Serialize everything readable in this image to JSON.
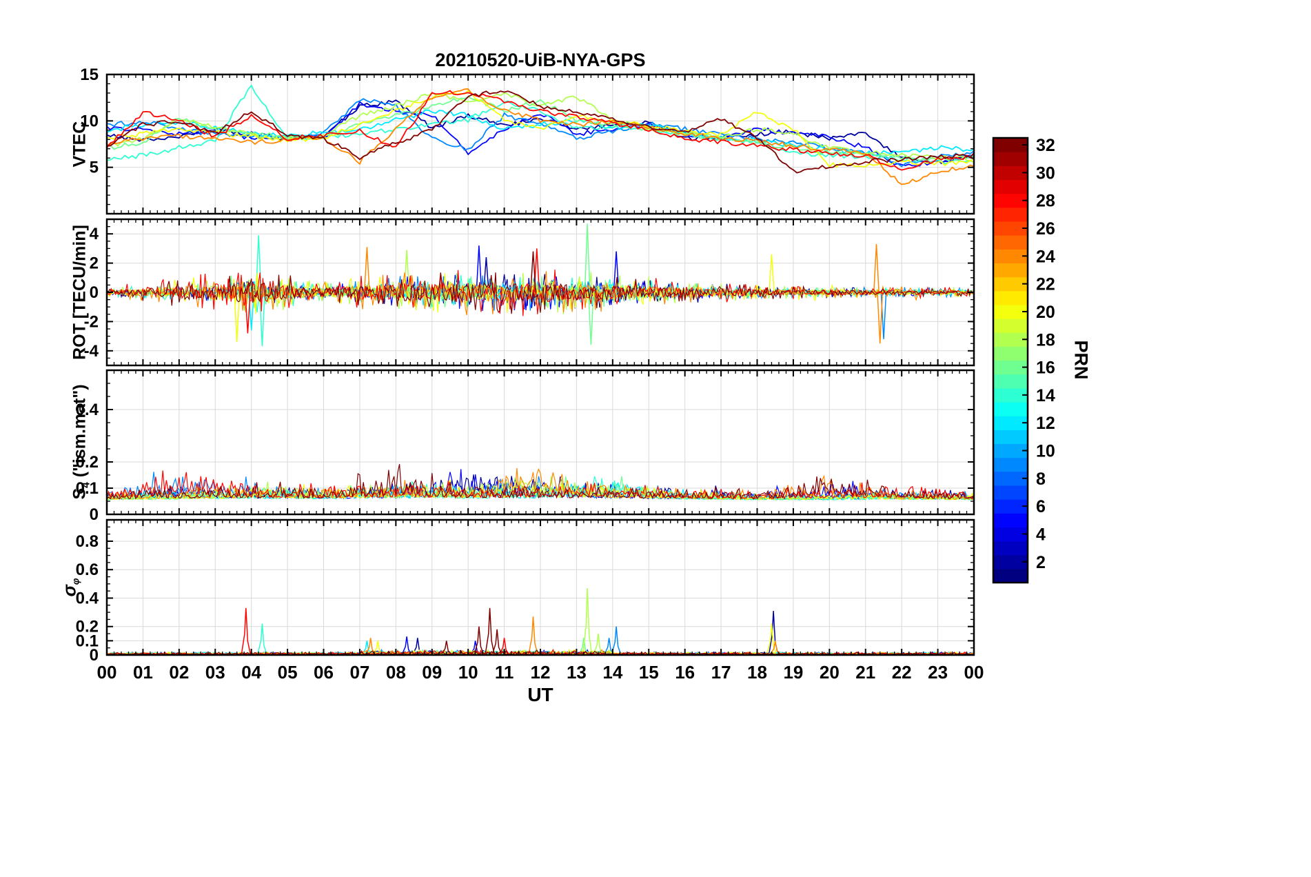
{
  "title": "20210520-UiB-NYA-GPS",
  "xlabel": "UT",
  "x_ticks": [
    "00",
    "01",
    "02",
    "03",
    "04",
    "05",
    "06",
    "07",
    "08",
    "09",
    "10",
    "11",
    "12",
    "13",
    "14",
    "15",
    "16",
    "17",
    "18",
    "19",
    "20",
    "21",
    "22",
    "23",
    "00"
  ],
  "colorbar": {
    "label": "PRN",
    "colormap": "jet",
    "range": [
      1,
      32
    ],
    "ticks": [
      2,
      4,
      6,
      8,
      10,
      12,
      14,
      16,
      18,
      20,
      22,
      24,
      26,
      28,
      30,
      32
    ]
  },
  "chart_data": [
    {
      "name": "vtec",
      "type": "line",
      "ylabel": "VTEC",
      "ylim": [
        0,
        15
      ],
      "yticks": [
        5,
        10,
        15
      ],
      "ytick_labels": [
        "5",
        "10",
        "15"
      ],
      "y_minor_step": 1,
      "render": "smooth_lines",
      "x_hours": [
        0,
        1,
        2,
        3,
        4,
        5,
        6,
        7,
        8,
        9,
        10,
        11,
        12,
        13,
        14,
        15,
        16,
        17,
        18,
        19,
        20,
        21,
        22,
        23,
        24
      ],
      "series": [
        {
          "prn": 2,
          "values": [
            8.4,
            8.0,
            8.3,
            9.1,
            8.6,
            8.1,
            8.4,
            11.6,
            12.1,
            9.2,
            10.6,
            9.6,
            10.1,
            9.2,
            9.6,
            9.8,
            8.1,
            8.3,
            8.6,
            8.8,
            8.1,
            8.6,
            6.1,
            5.6,
            6.1
          ]
        },
        {
          "prn": 5,
          "values": [
            9.2,
            9.0,
            8.6,
            8.9,
            8.1,
            8.2,
            8.1,
            11.9,
            11.1,
            10.6,
            6.6,
            9.1,
            10.9,
            8.6,
            9.1,
            9.6,
            8.6,
            8.1,
            9.1,
            8.7,
            8.3,
            7.1,
            5.1,
            5.6,
            6.2
          ]
        },
        {
          "prn": 9,
          "values": [
            9.6,
            9.9,
            9.1,
            8.6,
            8.4,
            8.1,
            8.6,
            12.3,
            11.6,
            8.1,
            6.9,
            10.6,
            9.6,
            8.1,
            8.9,
            9.7,
            9.1,
            8.5,
            8.1,
            7.6,
            7.1,
            6.6,
            5.3,
            6.1,
            6.6
          ]
        },
        {
          "prn": 12,
          "values": [
            8.9,
            9.6,
            9.9,
            9.3,
            8.6,
            8.5,
            8.7,
            9.1,
            10.1,
            11.1,
            10.6,
            9.1,
            9.6,
            10.1,
            9.3,
            9.5,
            8.7,
            8.1,
            7.9,
            7.3,
            6.9,
            6.5,
            6.7,
            7.1,
            6.9
          ]
        },
        {
          "prn": 14,
          "values": [
            5.9,
            6.3,
            7.1,
            7.9,
            13.8,
            8.1,
            8.3,
            8.6,
            9.1,
            9.6,
            10.1,
            12.1,
            11.1,
            9.1,
            9.4,
            9.1,
            8.6,
            8.1,
            7.6,
            6.6,
            6.3,
            6.1,
            5.9,
            5.6,
            5.7
          ]
        },
        {
          "prn": 16,
          "values": [
            7.1,
            7.6,
            10.3,
            9.1,
            8.6,
            8.3,
            8.1,
            9.6,
            10.6,
            11.6,
            12.6,
            11.1,
            12.1,
            10.1,
            9.6,
            9.1,
            8.6,
            8.1,
            7.6,
            7.1,
            6.6,
            6.4,
            6.1,
            5.9,
            6.0
          ]
        },
        {
          "prn": 18,
          "values": [
            7.3,
            8.1,
            10.1,
            9.3,
            8.5,
            8.1,
            8.4,
            10.6,
            11.6,
            12.9,
            12.1,
            13.1,
            11.6,
            12.6,
            10.1,
            9.3,
            8.7,
            8.3,
            9.1,
            8.6,
            7.1,
            6.6,
            6.3,
            6.1,
            5.9
          ]
        },
        {
          "prn": 20,
          "values": [
            8.1,
            8.6,
            9.1,
            8.7,
            8.3,
            7.9,
            8.1,
            9.6,
            11.1,
            12.6,
            13.1,
            10.1,
            9.1,
            10.6,
            9.9,
            9.5,
            8.9,
            8.5,
            10.9,
            9.1,
            5.3,
            5.1,
            5.6,
            5.4,
            5.6
          ]
        },
        {
          "prn": 24,
          "values": [
            7.6,
            8.1,
            8.4,
            8.1,
            7.7,
            7.9,
            8.2,
            5.6,
            9.1,
            12.6,
            13.3,
            11.1,
            10.1,
            9.6,
            9.9,
            9.3,
            8.6,
            8.1,
            7.9,
            7.3,
            6.9,
            6.6,
            3.1,
            4.6,
            5.1
          ]
        },
        {
          "prn": 28,
          "values": [
            7.1,
            10.9,
            10.1,
            8.3,
            10.6,
            8.1,
            8.5,
            8.9,
            7.1,
            12.9,
            13.1,
            12.1,
            11.1,
            10.4,
            9.7,
            9.1,
            8.1,
            7.7,
            7.3,
            6.9,
            6.5,
            6.3,
            4.6,
            5.9,
            6.1
          ]
        },
        {
          "prn": 32,
          "values": [
            7.3,
            9.6,
            9.9,
            8.6,
            11.1,
            8.4,
            8.1,
            6.1,
            7.6,
            9.1,
            12.6,
            13.3,
            11.6,
            10.9,
            10.1,
            9.4,
            8.9,
            10.3,
            8.1,
            4.6,
            5.1,
            5.6,
            5.9,
            6.1,
            6.3
          ]
        }
      ]
    },
    {
      "name": "rot",
      "type": "line",
      "ylabel": "ROT [TECU/min]",
      "ylim": [
        -5,
        5
      ],
      "yticks": [
        -4,
        -2,
        0,
        2,
        4
      ],
      "ytick_labels": [
        "-4",
        "-2",
        "0",
        "2",
        "4"
      ],
      "y_minor_step": 0.5,
      "render": "noise_envelope",
      "envelope_hours_step": 2,
      "series": [
        {
          "prn": 2,
          "amplitude_envelope": [
            0.3,
            0.3,
            0.8,
            0.5,
            1.0,
            1.2,
            1.3,
            1.0,
            0.8,
            0.5,
            0.4,
            0.3,
            0.3
          ],
          "spikes": [
            [
              10.5,
              2.4
            ]
          ]
        },
        {
          "prn": 5,
          "amplitude_envelope": [
            0.3,
            0.4,
            0.9,
            0.5,
            1.1,
            1.4,
            1.2,
            1.1,
            0.7,
            0.4,
            0.3,
            0.3,
            0.3
          ],
          "spikes": [
            [
              10.3,
              3.2
            ],
            [
              14.1,
              2.8
            ]
          ]
        },
        {
          "prn": 9,
          "amplitude_envelope": [
            0.3,
            0.4,
            0.8,
            0.6,
            1.2,
            1.3,
            1.4,
            0.9,
            0.6,
            0.4,
            0.3,
            0.4,
            0.3
          ],
          "spikes": [
            [
              21.5,
              -3.2
            ]
          ]
        },
        {
          "prn": 12,
          "amplitude_envelope": [
            0.3,
            0.5,
            1.0,
            0.5,
            0.9,
            1.2,
            1.1,
            0.8,
            0.6,
            0.4,
            0.3,
            0.3,
            0.3
          ],
          "spikes": [
            [
              4.0,
              -2.6
            ]
          ]
        },
        {
          "prn": 14,
          "amplitude_envelope": [
            0.4,
            0.5,
            1.6,
            0.6,
            1.0,
            1.3,
            1.2,
            1.0,
            0.7,
            0.4,
            0.3,
            0.3,
            0.3
          ],
          "spikes": [
            [
              4.2,
              3.9
            ],
            [
              4.3,
              -3.7
            ]
          ]
        },
        {
          "prn": 16,
          "amplitude_envelope": [
            0.3,
            0.6,
            1.4,
            0.6,
            1.1,
            1.5,
            1.3,
            1.2,
            0.6,
            0.4,
            0.3,
            0.3,
            0.3
          ],
          "spikes": [
            [
              13.3,
              4.7
            ],
            [
              13.4,
              -3.6
            ]
          ]
        },
        {
          "prn": 18,
          "amplitude_envelope": [
            0.3,
            0.8,
            1.7,
            0.7,
            1.2,
            1.4,
            1.5,
            1.6,
            0.8,
            0.5,
            0.4,
            0.3,
            0.3
          ],
          "spikes": [
            [
              8.3,
              2.9
            ]
          ]
        },
        {
          "prn": 20,
          "amplitude_envelope": [
            0.4,
            1.0,
            1.8,
            0.8,
            1.3,
            1.5,
            1.4,
            1.2,
            0.9,
            0.5,
            0.6,
            0.4,
            0.3
          ],
          "spikes": [
            [
              3.6,
              -3.4
            ],
            [
              18.4,
              2.6
            ]
          ]
        },
        {
          "prn": 24,
          "amplitude_envelope": [
            0.4,
            0.9,
            1.5,
            0.7,
            1.6,
            1.6,
            1.5,
            1.3,
            0.8,
            0.5,
            0.4,
            0.6,
            0.3
          ],
          "spikes": [
            [
              7.2,
              3.1
            ],
            [
              21.3,
              3.3
            ],
            [
              21.4,
              -3.5
            ]
          ]
        },
        {
          "prn": 28,
          "amplitude_envelope": [
            0.4,
            1.1,
            1.9,
            0.8,
            1.5,
            1.7,
            1.6,
            1.4,
            0.9,
            0.5,
            0.4,
            0.4,
            0.3
          ],
          "spikes": [
            [
              3.9,
              -2.8
            ],
            [
              11.9,
              3.0
            ]
          ]
        },
        {
          "prn": 32,
          "amplitude_envelope": [
            0.4,
            1.0,
            1.8,
            0.7,
            1.4,
            1.8,
            1.7,
            1.5,
            0.8,
            0.5,
            0.4,
            0.3,
            0.3
          ],
          "spikes": [
            [
              11.8,
              2.8
            ]
          ]
        }
      ]
    },
    {
      "name": "s4",
      "type": "line",
      "ylabel": "S_4 (\"ism.mat\")",
      "ylabel_parts": {
        "main": "S",
        "sub": "4",
        "rest": " (\"ism.mat\")"
      },
      "ylim": [
        0,
        0.55
      ],
      "yticks": [
        0,
        0.1,
        0.2,
        0.4
      ],
      "ytick_labels": [
        "0",
        "0.1",
        "0.2",
        "0.4"
      ],
      "y_minor_step": 0.05,
      "baseline": 0.05,
      "render": "burst_envelope",
      "envelope_hours_step": 2,
      "series": [
        {
          "prn": 2,
          "max_envelope": [
            0.1,
            0.12,
            0.13,
            0.12,
            0.14,
            0.2,
            0.16,
            0.12,
            0.12,
            0.1,
            0.09,
            0.12,
            0.1
          ]
        },
        {
          "prn": 5,
          "max_envelope": [
            0.09,
            0.11,
            0.12,
            0.11,
            0.12,
            0.18,
            0.14,
            0.12,
            0.1,
            0.09,
            0.16,
            0.1,
            0.09
          ]
        },
        {
          "prn": 9,
          "max_envelope": [
            0.1,
            0.2,
            0.14,
            0.12,
            0.13,
            0.14,
            0.16,
            0.11,
            0.1,
            0.09,
            0.09,
            0.1,
            0.09
          ]
        },
        {
          "prn": 12,
          "max_envelope": [
            0.09,
            0.13,
            0.12,
            0.1,
            0.12,
            0.12,
            0.12,
            0.16,
            0.1,
            0.08,
            0.08,
            0.09,
            0.08
          ]
        },
        {
          "prn": 14,
          "max_envelope": [
            0.08,
            0.1,
            0.11,
            0.1,
            0.14,
            0.11,
            0.12,
            0.18,
            0.09,
            0.08,
            0.08,
            0.1,
            0.08
          ]
        },
        {
          "prn": 16,
          "max_envelope": [
            0.08,
            0.09,
            0.12,
            0.11,
            0.12,
            0.12,
            0.14,
            0.16,
            0.09,
            0.08,
            0.08,
            0.09,
            0.08
          ]
        },
        {
          "prn": 18,
          "max_envelope": [
            0.09,
            0.1,
            0.13,
            0.12,
            0.14,
            0.13,
            0.22,
            0.12,
            0.1,
            0.08,
            0.09,
            0.09,
            0.08
          ]
        },
        {
          "prn": 20,
          "max_envelope": [
            0.09,
            0.1,
            0.12,
            0.12,
            0.13,
            0.14,
            0.14,
            0.13,
            0.11,
            0.09,
            0.1,
            0.09,
            0.09
          ]
        },
        {
          "prn": 24,
          "max_envelope": [
            0.1,
            0.12,
            0.13,
            0.12,
            0.14,
            0.13,
            0.25,
            0.12,
            0.11,
            0.1,
            0.2,
            0.1,
            0.09
          ]
        },
        {
          "prn": 28,
          "max_envelope": [
            0.11,
            0.22,
            0.14,
            0.13,
            0.14,
            0.13,
            0.14,
            0.16,
            0.12,
            0.1,
            0.12,
            0.14,
            0.1
          ]
        },
        {
          "prn": 32,
          "max_envelope": [
            0.1,
            0.12,
            0.13,
            0.12,
            0.2,
            0.13,
            0.13,
            0.12,
            0.12,
            0.1,
            0.19,
            0.12,
            0.1
          ]
        }
      ]
    },
    {
      "name": "sigma-phi",
      "type": "line",
      "ylabel": "σ_φ",
      "ylabel_parts": {
        "main": "σ",
        "sub": "φ"
      },
      "ylim": [
        0,
        0.95
      ],
      "yticks": [
        0,
        0.1,
        0.2,
        0.4,
        0.6,
        0.8
      ],
      "ytick_labels": [
        "0",
        "0.1",
        "0.2",
        "0.4",
        "0.6",
        "0.8"
      ],
      "y_minor_step": 0.05,
      "baseline": 0.02,
      "active_window_hours": [
        7,
        14
      ],
      "render": "spike_baseline",
      "series": [
        {
          "prn": 2,
          "spikes": [
            [
              18.45,
              0.31
            ],
            [
              8.6,
              0.12
            ]
          ]
        },
        {
          "prn": 5,
          "spikes": [
            [
              8.3,
              0.13
            ],
            [
              10.2,
              0.1
            ]
          ]
        },
        {
          "prn": 9,
          "spikes": [
            [
              14.1,
              0.2
            ],
            [
              13.9,
              0.12
            ]
          ]
        },
        {
          "prn": 12,
          "spikes": [
            [
              7.2,
              0.1
            ]
          ]
        },
        {
          "prn": 14,
          "spikes": [
            [
              4.3,
              0.22
            ]
          ]
        },
        {
          "prn": 16,
          "spikes": [
            [
              13.2,
              0.12
            ]
          ]
        },
        {
          "prn": 18,
          "spikes": [
            [
              13.3,
              0.47
            ],
            [
              13.6,
              0.15
            ]
          ]
        },
        {
          "prn": 20,
          "spikes": [
            [
              18.4,
              0.22
            ],
            [
              7.5,
              0.1
            ]
          ]
        },
        {
          "prn": 24,
          "spikes": [
            [
              11.8,
              0.27
            ],
            [
              7.3,
              0.12
            ],
            [
              18.5,
              0.1
            ]
          ]
        },
        {
          "prn": 28,
          "spikes": [
            [
              3.85,
              0.33
            ],
            [
              11.0,
              0.12
            ]
          ]
        },
        {
          "prn": 32,
          "spikes": [
            [
              10.6,
              0.33
            ],
            [
              10.3,
              0.2
            ],
            [
              10.8,
              0.18
            ],
            [
              9.4,
              0.1
            ]
          ]
        }
      ]
    }
  ]
}
